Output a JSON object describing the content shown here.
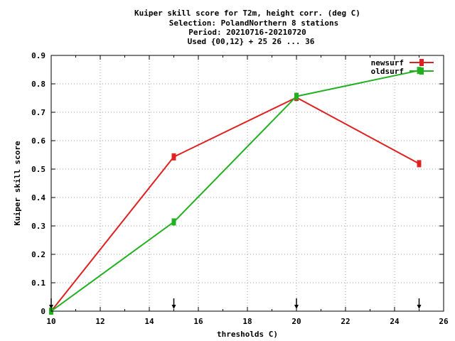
{
  "chart_data": {
    "type": "line",
    "title_lines": [
      "Kuiper skill score  for T2m, height corr. (deg C)",
      "Selection: PolandNorthern      8 stations",
      "Period: 20210716-20210720",
      "Used {00,12} + 25 26 ... 36"
    ],
    "xlabel": "thresholds C)",
    "ylabel": "Kuiper skill score",
    "xlim": [
      10,
      26
    ],
    "ylim": [
      0,
      0.9
    ],
    "xticks": [
      10,
      12,
      14,
      16,
      18,
      20,
      22,
      24,
      26
    ],
    "yticks": [
      0,
      0.1,
      0.2,
      0.3,
      0.4,
      0.5,
      0.6,
      0.7,
      0.8,
      0.9
    ],
    "ytick_labels": [
      "0",
      "0.1",
      "0.2",
      "0.3",
      "0.4",
      "0.5",
      "0.6",
      "0.7",
      "0.8",
      "0.9"
    ],
    "grid": true,
    "legend_position": "top-right",
    "threshold_markers": [
      10,
      15,
      20,
      25
    ],
    "series": [
      {
        "name": "newsurf",
        "color": "#e02020",
        "x": [
          10,
          15,
          20,
          25
        ],
        "y": [
          0.0,
          0.543,
          0.752,
          0.519
        ]
      },
      {
        "name": "oldsurf",
        "color": "#20b020",
        "x": [
          10,
          15,
          20,
          25
        ],
        "y": [
          0.0,
          0.314,
          0.756,
          0.847
        ]
      }
    ]
  }
}
